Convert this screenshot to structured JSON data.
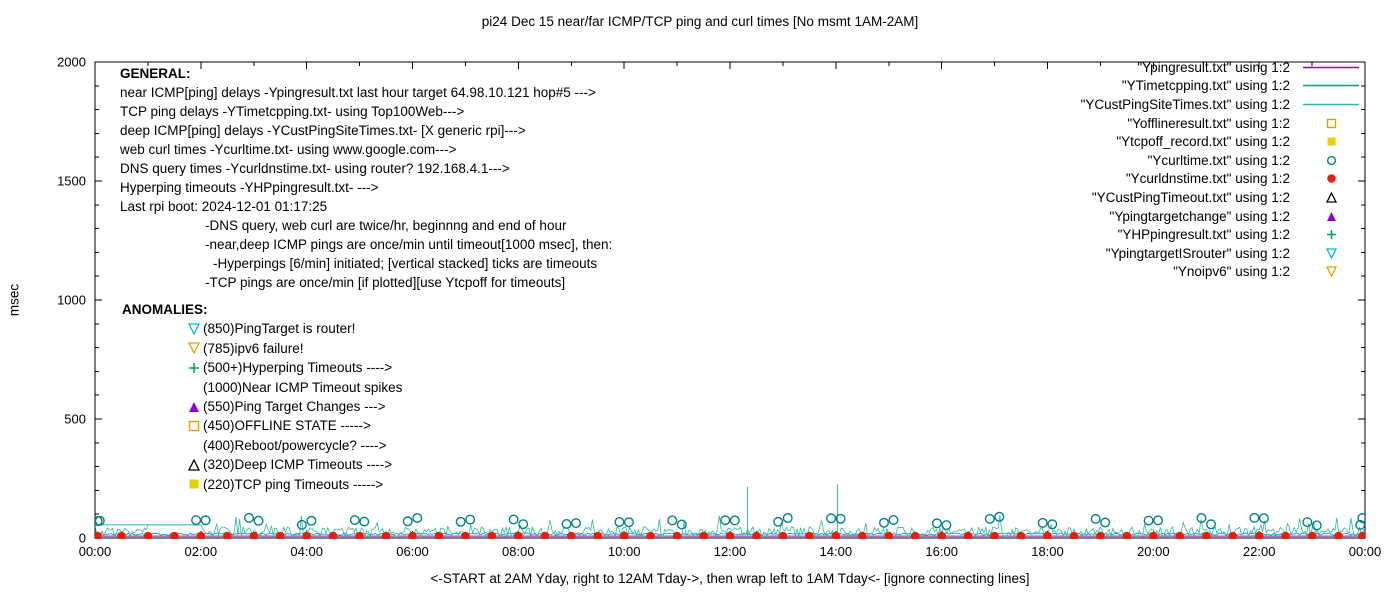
{
  "chart_data": {
    "type": "line",
    "title": "pi24 Dec 15  near/far ICMP/TCP ping and curl times [No msmt 1AM-2AM]",
    "xlabel": "<-START at 2AM Yday, right to 12AM Tday->, then wrap left to 1AM Tday<- [ignore connecting lines]",
    "ylabel": "msec",
    "x_unit": "hours",
    "xlim_hours": [
      0,
      24
    ],
    "ylim": [
      0,
      2000
    ],
    "x_ticks": [
      "00:00",
      "02:00",
      "04:00",
      "06:00",
      "08:00",
      "10:00",
      "12:00",
      "14:00",
      "16:00",
      "18:00",
      "20:00",
      "22:00",
      "00:00"
    ],
    "y_ticks": [
      0,
      500,
      1000,
      1500,
      2000
    ],
    "grid": false,
    "legend_position": "top-right",
    "series": [
      {
        "name": "Ypingresult.txt",
        "kind": "constant-line",
        "color": "#9400d3",
        "value": 8
      },
      {
        "name": "YTimetcpping.txt",
        "kind": "noisy-line",
        "color": "#009e73",
        "base": 12,
        "jitter": 9,
        "burst_chance": 0,
        "burst_extra": 0,
        "seed": 7
      },
      {
        "name": "YCustPingSiteTimes.txt",
        "kind": "noisy-line",
        "color": "#2eb8a4",
        "base": 5,
        "jitter": 42,
        "burst_chance": 0.08,
        "burst_extra": 55,
        "seed": 3,
        "gap_hours": [
          1,
          2
        ],
        "flat_segment": {
          "from": 0,
          "to": 2,
          "value": 55
        },
        "spikes": [
          [
            12.33,
            215
          ],
          [
            14.03,
            225
          ]
        ]
      },
      {
        "name": "Ycurltime.txt",
        "kind": "hourly-pair-points",
        "marker": "circle-open",
        "color": "#00808a",
        "min": 52,
        "max": 90,
        "pair_offset": 0.09,
        "seed": 11,
        "skip_hours": [
          1
        ]
      },
      {
        "name": "Ycurldnstime.txt",
        "kind": "interval-points",
        "marker": "circle-filled",
        "color": "#e51e10",
        "value": 8,
        "interval_hours": 0.5
      }
    ]
  },
  "general": {
    "header": "GENERAL:",
    "lines": [
      {
        "text": "near ICMP[ping] delays -Ypingresult.txt last hour target 64.98.10.121 hop#5 --->",
        "indent": 0
      },
      {
        "text": "TCP ping delays -YTimetcpping.txt- using Top100Web--->",
        "indent": 0
      },
      {
        "text": "deep ICMP[ping] delays -YCustPingSiteTimes.txt- [X generic rpi]--->",
        "indent": 0
      },
      {
        "text": "web curl times -Ycurltime.txt- using www.google.com--->",
        "indent": 0
      },
      {
        "text": "DNS query times -Ycurldnstime.txt- using router? 192.168.4.1--->",
        "indent": 0
      },
      {
        "text": "Hyperping timeouts -YHPpingresult.txt- --->",
        "indent": 0
      },
      {
        "text": "Last rpi boot: 2024-12-01 01:17:25",
        "indent": 0
      },
      {
        "text": "-DNS query, web curl are twice/hr, beginnng and end of hour",
        "indent": 1
      },
      {
        "text": "-near,deep ICMP pings are once/min until timeout[1000 msec], then:",
        "indent": 1
      },
      {
        "text": "-Hyperpings [6/min] initiated; [vertical stacked] ticks are timeouts",
        "indent": 2
      },
      {
        "text": "-TCP pings are once/min [if plotted][use Ytcpoff for timeouts]",
        "indent": 1
      }
    ]
  },
  "anomalies": {
    "header": "ANOMALIES:",
    "items": [
      {
        "marker": "triangle-down-open",
        "color": "#00bcd4",
        "text": "(850)PingTarget is router!"
      },
      {
        "marker": "triangle-down-open",
        "color": "#e69f00",
        "text": "(785)ipv6 failure!"
      },
      {
        "marker": "plus",
        "color": "#009e73",
        "text": "(500+)Hyperping Timeouts ---->"
      },
      {
        "marker": "none",
        "color": "#000000",
        "text": "(1000)Near ICMP Timeout spikes"
      },
      {
        "marker": "triangle-filled",
        "color": "#9400d3",
        "text": "(550)Ping Target Changes --->"
      },
      {
        "marker": "square-open",
        "color": "#e69f00",
        "text": "(450)OFFLINE STATE ----->"
      },
      {
        "marker": "none",
        "color": "#000000",
        "text": "(400)Reboot/powercycle? ---->"
      },
      {
        "marker": "triangle-open",
        "color": "#000000",
        "text": "(320)Deep ICMP Timeouts ---->"
      },
      {
        "marker": "square-filled",
        "color": "#e6d100",
        "text": "(220)TCP ping Timeouts ----->"
      }
    ]
  },
  "legend": [
    {
      "label": "\"Ypingresult.txt\" using 1:2",
      "sample": "line",
      "color": "#9400d3"
    },
    {
      "label": "\"YTimetcpping.txt\" using 1:2",
      "sample": "line",
      "color": "#009e73"
    },
    {
      "label": "\"YCustPingSiteTimes.txt\" using 1:2",
      "sample": "line",
      "color": "#2eb8a4"
    },
    {
      "label": "\"Yofflineresult.txt\" using 1:2",
      "sample": "square-open",
      "color": "#e69f00"
    },
    {
      "label": "\"Ytcpoff_record.txt\" using 1:2",
      "sample": "square-filled",
      "color": "#e6d100"
    },
    {
      "label": "\"Ycurltime.txt\" using 1:2",
      "sample": "circle-open",
      "color": "#00808a"
    },
    {
      "label": "\"Ycurldnstime.txt\" using 1:2",
      "sample": "circle-filled",
      "color": "#e51e10"
    },
    {
      "label": "\"YCustPingTimeout.txt\" using 1:2",
      "sample": "triangle-open",
      "color": "#000000"
    },
    {
      "label": "\"Ypingtargetchange\" using 1:2",
      "sample": "triangle-filled",
      "color": "#9400d3"
    },
    {
      "label": "\"YHPpingresult.txt\" using 1:2",
      "sample": "plus",
      "color": "#009e73"
    },
    {
      "label": "\"YpingtargetISrouter\" using 1:2",
      "sample": "triangle-down-open",
      "color": "#00bcd4"
    },
    {
      "label": "\"Ynoipv6\" using 1:2",
      "sample": "triangle-down-open",
      "color": "#e69f00"
    }
  ]
}
